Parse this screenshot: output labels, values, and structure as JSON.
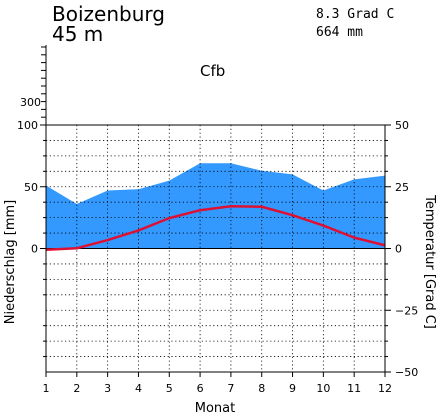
{
  "station": {
    "name": "Boizenburg",
    "elevation": "45 m",
    "annual_temperature": "8.3 Grad C",
    "annual_precipitation": "664 mm",
    "climate_class": "Cfb"
  },
  "colors": {
    "precipitation_fill": "#3399ff",
    "temperature_line": "#dd1133",
    "axes": "#000000"
  },
  "chart_data": {
    "type": "area",
    "xlabel": "Monat",
    "ylabel_left": "Niederschlag [mm]",
    "ylabel_right": "Temperatur [Grad C]",
    "categories": [
      "1",
      "2",
      "3",
      "4",
      "5",
      "6",
      "7",
      "8",
      "9",
      "10",
      "11",
      "12"
    ],
    "precipitation_ylim": [
      -100,
      100
    ],
    "temperature_ylim": [
      -50,
      50
    ],
    "left_ticks": [
      "100",
      "50",
      "0"
    ],
    "left_upper_tick": "300",
    "right_ticks": [
      "50",
      "25",
      "0",
      "−25",
      "−50"
    ],
    "grid": true,
    "series": [
      {
        "kind": "area",
        "axis": "left",
        "values": [
          51,
          36,
          47,
          48,
          55,
          69,
          69,
          63,
          60,
          47,
          56,
          59
        ]
      },
      {
        "kind": "line",
        "axis": "right",
        "values": [
          -0.5,
          0.1,
          3.4,
          7.3,
          12.3,
          15.5,
          17.1,
          16.9,
          13.5,
          9.3,
          4.4,
          1.3
        ]
      }
    ]
  }
}
